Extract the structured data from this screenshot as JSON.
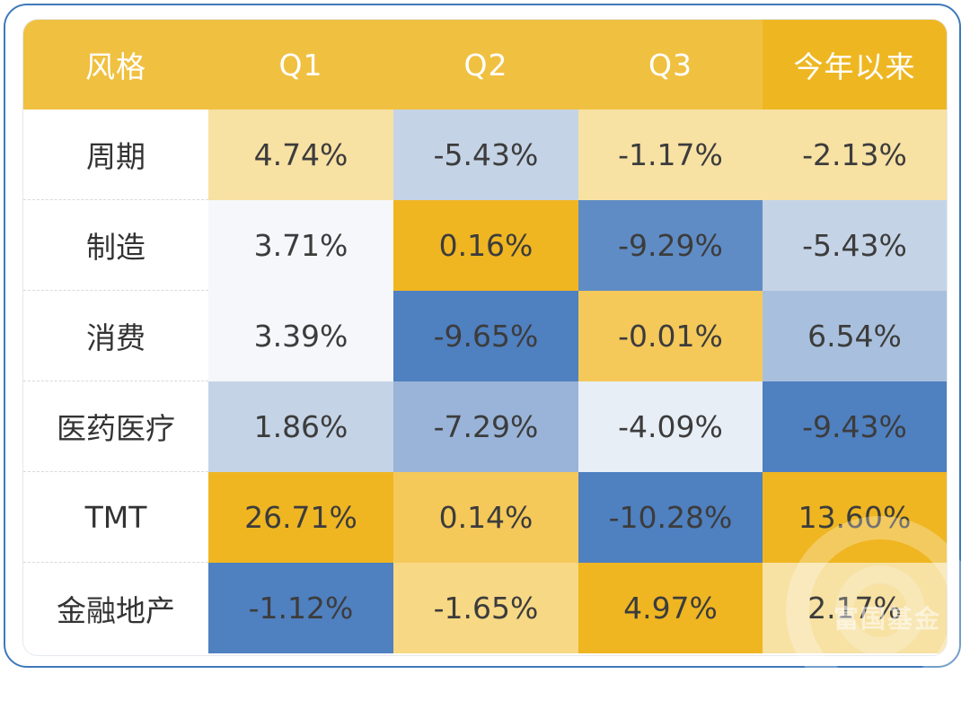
{
  "chart_data": {
    "type": "table",
    "columns": [
      "风格",
      "Q1",
      "Q2",
      "Q3",
      "今年以来"
    ],
    "rows": [
      {
        "label": "周期",
        "values": [
          "4.74%",
          "-5.43%",
          "-1.17%",
          "-2.13%"
        ],
        "colors": [
          "#f7e1a3",
          "#c5d3e6",
          "#f7e1a3",
          "#f7e1a3"
        ]
      },
      {
        "label": "制造",
        "values": [
          "3.71%",
          "0.16%",
          "-9.29%",
          "-5.43%"
        ],
        "colors": [
          "#f5f7fa",
          "#efb622",
          "#5f8cc5",
          "#c5d3e6"
        ]
      },
      {
        "label": "消费",
        "values": [
          "3.39%",
          "-9.65%",
          "-0.01%",
          "6.54%"
        ],
        "colors": [
          "#f5f7fa",
          "#4f80c0",
          "#f5c85a",
          "#a8c0dd"
        ]
      },
      {
        "label": "医药医疗",
        "values": [
          "1.86%",
          "-7.29%",
          "-4.09%",
          "-9.43%"
        ],
        "colors": [
          "#c5d3e6",
          "#99b4d8",
          "#e8eef6",
          "#4f80c0"
        ]
      },
      {
        "label": "TMT",
        "values": [
          "26.71%",
          "0.14%",
          "-10.28%",
          "13.60%"
        ],
        "colors": [
          "#efb622",
          "#f5c85a",
          "#4f80c0",
          "#efb622"
        ]
      },
      {
        "label": "金融地产",
        "values": [
          "-1.12%",
          "-1.65%",
          "4.97%",
          "2.17%"
        ],
        "colors": [
          "#4f80c0",
          "#f7d884",
          "#efb622",
          "#f7e1a3"
        ]
      }
    ]
  },
  "watermark": {
    "text": "富国基金"
  }
}
